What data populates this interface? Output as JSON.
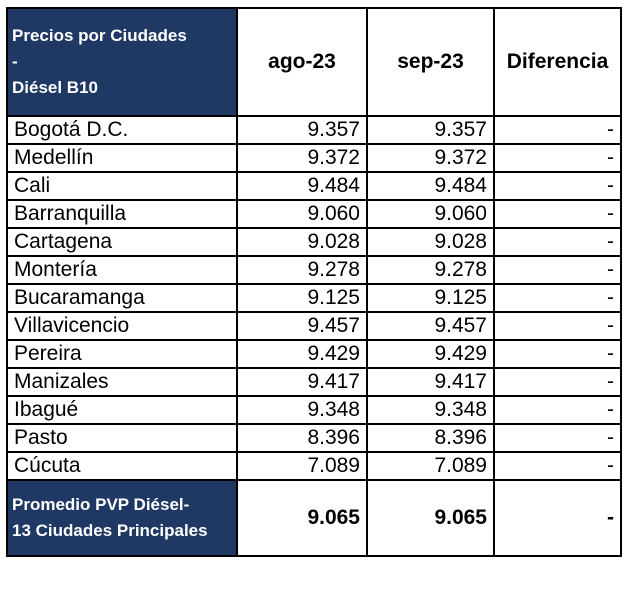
{
  "header": {
    "title_line1": "Precios por Ciudades",
    "title_line2": "-",
    "title_line3": "Diésel B10",
    "col_ago": "ago-23",
    "col_sep": "sep-23",
    "col_diff": "Diferencia"
  },
  "rows": [
    {
      "city": "Bogotá D.C.",
      "ago": "9.357",
      "sep": "9.357",
      "diff": "-"
    },
    {
      "city": "Medellín",
      "ago": "9.372",
      "sep": "9.372",
      "diff": "-"
    },
    {
      "city": "Cali",
      "ago": "9.484",
      "sep": "9.484",
      "diff": "-"
    },
    {
      "city": "Barranquilla",
      "ago": "9.060",
      "sep": "9.060",
      "diff": "-"
    },
    {
      "city": "Cartagena",
      "ago": "9.028",
      "sep": "9.028",
      "diff": "-"
    },
    {
      "city": "Montería",
      "ago": "9.278",
      "sep": "9.278",
      "diff": "-"
    },
    {
      "city": "Bucaramanga",
      "ago": "9.125",
      "sep": "9.125",
      "diff": "-"
    },
    {
      "city": "Villavicencio",
      "ago": "9.457",
      "sep": "9.457",
      "diff": "-"
    },
    {
      "city": "Pereira",
      "ago": "9.429",
      "sep": "9.429",
      "diff": "-"
    },
    {
      "city": "Manizales",
      "ago": "9.417",
      "sep": "9.417",
      "diff": "-"
    },
    {
      "city": "Ibagué",
      "ago": "9.348",
      "sep": "9.348",
      "diff": "-"
    },
    {
      "city": "Pasto",
      "ago": "8.396",
      "sep": "8.396",
      "diff": "-"
    },
    {
      "city": "Cúcuta",
      "ago": "7.089",
      "sep": "7.089",
      "diff": "-"
    }
  ],
  "footer": {
    "label_line1": "Promedio PVP Diésel-",
    "label_line2": "13 Ciudades Principales",
    "ago": "9.065",
    "sep": "9.065",
    "diff": "-"
  },
  "colors": {
    "header_bg": "#1f3864",
    "header_text": "#ffffff"
  }
}
